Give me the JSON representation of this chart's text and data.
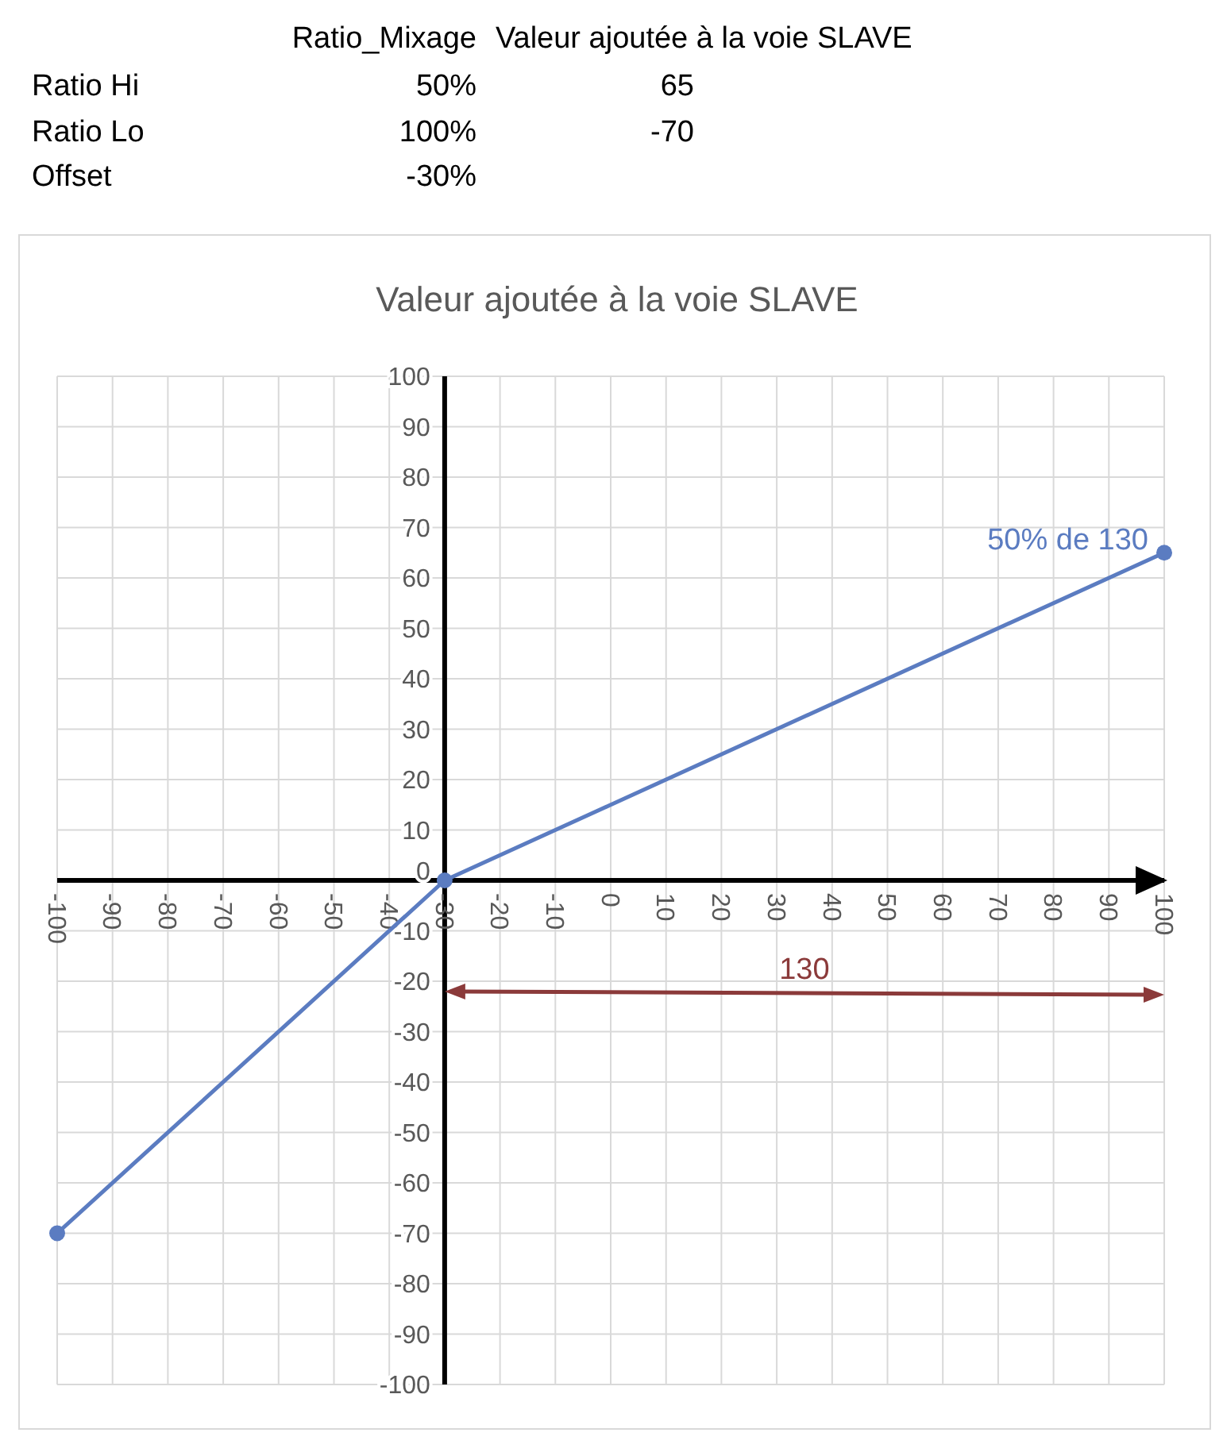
{
  "chart_data": {
    "type": "line",
    "title": "Valeur ajoutée à la voie SLAVE",
    "x": [
      -100,
      -30,
      100
    ],
    "series": [
      {
        "color": "#5b7cc1",
        "values": [
          -70,
          0,
          65
        ]
      }
    ],
    "marker": "circle",
    "grid": true,
    "xlim": [
      -100,
      100
    ],
    "xticks": [
      -100,
      -90,
      -80,
      -70,
      -60,
      -50,
      -40,
      -30,
      -20,
      -10,
      0,
      10,
      20,
      30,
      40,
      50,
      60,
      70,
      80,
      90,
      100
    ],
    "ylim": [
      -100,
      100
    ],
    "yticks": [
      -100,
      -90,
      -80,
      -70,
      -60,
      -50,
      -40,
      -30,
      -20,
      -10,
      0,
      10,
      20,
      30,
      40,
      50,
      60,
      70,
      80,
      90,
      100
    ],
    "annotations": [
      "Ratio_Mixage",
      "Valeur ajoutée à la voie SLAVE",
      "Ratio Hi",
      "50%",
      "65",
      "Ratio Lo",
      "100%",
      "-70",
      "Offset",
      "-30%",
      {
        "text": "50% de 130",
        "x": 100,
        "y": 65
      },
      "130"
    ]
  }
}
